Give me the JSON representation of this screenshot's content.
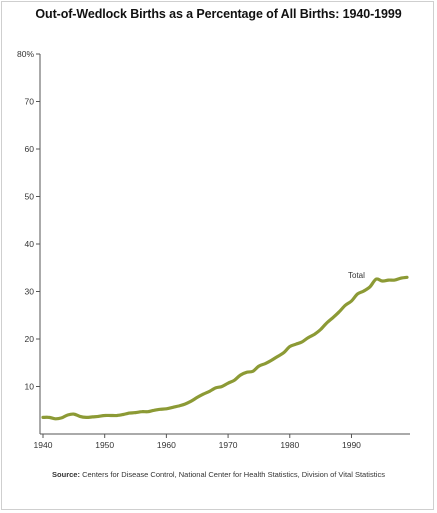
{
  "chart_data": {
    "type": "line",
    "title": "Out-of-Wedlock Births as a Percentage of All Births: 1940-1999",
    "xlabel": "",
    "ylabel": "",
    "xlim": [
      1940,
      1999
    ],
    "ylim": [
      0,
      80
    ],
    "x_ticks": [
      "1940",
      "1950",
      "1960",
      "1970",
      "1980",
      "1990"
    ],
    "y_ticks": [
      "10",
      "20",
      "30",
      "40",
      "50",
      "60",
      "70",
      "80%"
    ],
    "grid": false,
    "line_color": "#8c9a35",
    "series": [
      {
        "name": "Total",
        "x": [
          1940,
          1941,
          1942,
          1943,
          1944,
          1945,
          1946,
          1947,
          1948,
          1949,
          1950,
          1951,
          1952,
          1953,
          1954,
          1955,
          1956,
          1957,
          1958,
          1959,
          1960,
          1961,
          1962,
          1963,
          1964,
          1965,
          1966,
          1967,
          1968,
          1969,
          1970,
          1971,
          1972,
          1973,
          1974,
          1975,
          1976,
          1977,
          1978,
          1979,
          1980,
          1981,
          1982,
          1983,
          1984,
          1985,
          1986,
          1987,
          1988,
          1989,
          1990,
          1991,
          1992,
          1993,
          1994,
          1995,
          1996,
          1997,
          1998,
          1999
        ],
        "values": [
          3.5,
          3.5,
          3.2,
          3.4,
          4.0,
          4.2,
          3.7,
          3.5,
          3.6,
          3.7,
          3.9,
          3.9,
          3.9,
          4.1,
          4.4,
          4.5,
          4.7,
          4.7,
          5.0,
          5.2,
          5.3,
          5.6,
          5.9,
          6.3,
          6.9,
          7.7,
          8.4,
          9.0,
          9.7,
          10.0,
          10.7,
          11.3,
          12.4,
          13.0,
          13.2,
          14.3,
          14.8,
          15.5,
          16.3,
          17.1,
          18.4,
          18.9,
          19.4,
          20.3,
          21.0,
          22.0,
          23.4,
          24.5,
          25.7,
          27.1,
          28.0,
          29.5,
          30.1,
          31.0,
          32.6,
          32.2,
          32.4,
          32.4,
          32.8,
          33.0
        ]
      }
    ],
    "annotations": [
      {
        "text": "Total"
      }
    ],
    "source": {
      "label": "Source:",
      "text": "Centers for Disease Control, National Center for Health Statistics, Division of Vital Statistics"
    }
  }
}
